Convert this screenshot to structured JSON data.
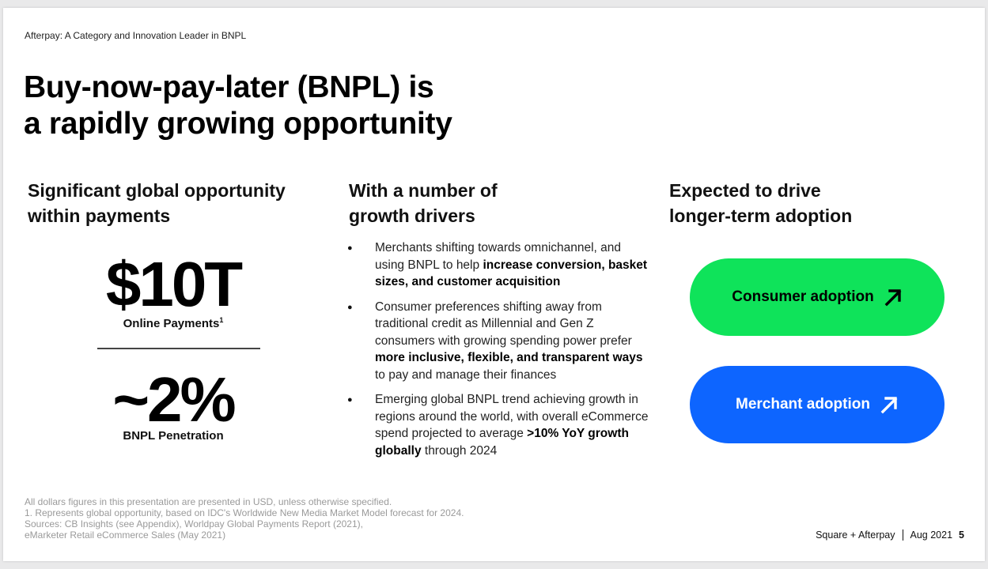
{
  "slide": {
    "eyebrow": "Afterpay: A Category and Innovation Leader in BNPL",
    "title_line1": "Buy-now-pay-later (BNPL) is",
    "title_line2": "a rapidly growing opportunity"
  },
  "left": {
    "heading_line1": "Significant global opportunity",
    "heading_line2": "within payments",
    "stat1_value": "$10T",
    "stat1_label": "Online Payments",
    "stat1_footnote": "1",
    "stat2_value": "~2%",
    "stat2_label": "BNPL Penetration"
  },
  "middle": {
    "heading_line1": "With a number of",
    "heading_line2": "growth drivers",
    "b1_text1": "Merchants shifting towards omnichannel, and using BNPL to help ",
    "b1_bold": "increase conversion, basket sizes, and customer acquisition",
    "b2_text1": "Consumer preferences shifting away from traditional credit as Millennial and Gen Z consumers with growing spending power prefer ",
    "b2_bold": "more inclusive, flexible, and transparent ways",
    "b2_text2": " to pay and manage their finances",
    "b3_text1": "Emerging global BNPL trend achieving growth in regions around the world, with overall eCommerce spend projected to average ",
    "b3_bold": ">10% YoY growth globally",
    "b3_text2": " through 2024"
  },
  "right": {
    "heading_line1": "Expected to drive",
    "heading_line2": "longer-term adoption",
    "consumer_label": "Consumer adoption",
    "merchant_label": "Merchant adoption"
  },
  "footnotes": {
    "line1": "All dollars figures in this presentation are presented in USD, unless otherwise specified.",
    "line2": "1. Represents global opportunity, based on IDC's Worldwide New Media Market Model forecast for 2024.",
    "line3": "Sources: CB Insights (see Appendix), Worldpay Global Payments Report (2021),",
    "line4": "eMarketer Retail eCommerce Sales (May 2021)"
  },
  "footer": {
    "brand": "Square + Afterpay",
    "date": "Aug 2021",
    "page": "5"
  },
  "colors": {
    "green_pill": "#0fe35a",
    "blue_pill": "#0d65ff"
  },
  "icons": {
    "pill_arrow": "arrow-up-right-icon",
    "bullet": "bullet-dot-icon"
  }
}
